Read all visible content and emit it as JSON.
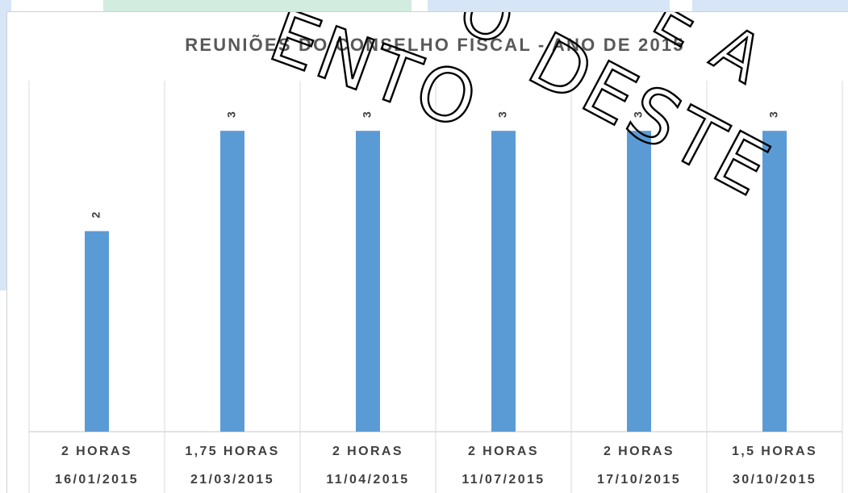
{
  "chart_data": {
    "type": "bar",
    "title": "REUNIÕES DO CONSELHO FISCAL - ANO DE 2015",
    "categories": [
      {
        "duration": "2 HORAS",
        "date": "16/01/2015"
      },
      {
        "duration": "1,75 HORAS",
        "date": "21/03/2015"
      },
      {
        "duration": "2 HORAS",
        "date": "11/04/2015"
      },
      {
        "duration": "2 HORAS",
        "date": "11/07/2015"
      },
      {
        "duration": "2 HORAS",
        "date": "17/10/2015"
      },
      {
        "duration": "1,5 HORAS",
        "date": "30/10/2015"
      }
    ],
    "values": [
      2,
      3,
      3,
      3,
      3,
      3
    ],
    "value_labels": [
      "2",
      "3",
      "3",
      "3",
      "3",
      "3"
    ],
    "ylim": [
      0,
      3.5
    ],
    "grid": false,
    "xlabel": "",
    "ylabel": "",
    "bar_color": "#5b9bd5"
  },
  "watermark": {
    "line1": "ENTO",
    "line2": "DESTE",
    "line3": "E A",
    "line4": "O"
  }
}
